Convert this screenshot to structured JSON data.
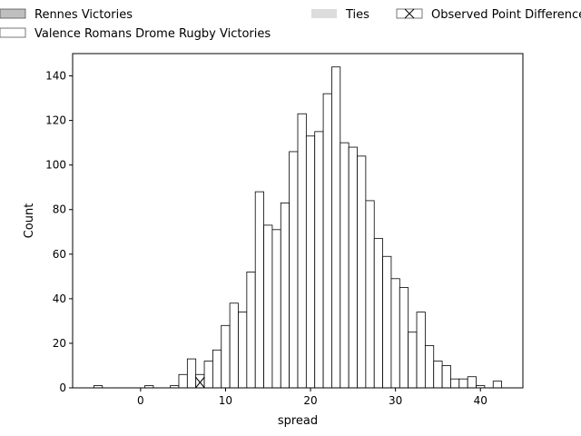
{
  "chart_data": {
    "type": "bar",
    "subtype": "histogram",
    "xlabel": "spread",
    "ylabel": "Count",
    "xlim": [
      -8,
      45
    ],
    "ylim": [
      0,
      150
    ],
    "xticks": [
      0,
      10,
      20,
      30,
      40
    ],
    "yticks": [
      0,
      20,
      40,
      60,
      80,
      100,
      120,
      140
    ],
    "bin_width": 1,
    "grid": false,
    "legend_position": "top",
    "legend": [
      {
        "label": "Rennes Victories",
        "color": "#bfbfbf",
        "style": "fill"
      },
      {
        "label": "Valence Romans Drome Rugby Victories",
        "color": "#ffffff",
        "style": "outline"
      },
      {
        "label": "Ties",
        "color": "#dcdcdc",
        "style": "fill-no-border"
      },
      {
        "label": "Observed Point Difference",
        "color": "#ffffff",
        "style": "x-marker"
      }
    ],
    "observed_point_difference": 7,
    "series": [
      {
        "name": "Valence Romans Drome Rugby Victories",
        "color": "#ffffff",
        "bins": [
          {
            "x": -5,
            "count": 1
          },
          {
            "x": 1,
            "count": 1
          },
          {
            "x": 4,
            "count": 1
          },
          {
            "x": 5,
            "count": 6
          },
          {
            "x": 6,
            "count": 13
          },
          {
            "x": 7,
            "count": 6
          },
          {
            "x": 8,
            "count": 12
          },
          {
            "x": 9,
            "count": 17
          },
          {
            "x": 10,
            "count": 28
          },
          {
            "x": 11,
            "count": 38
          },
          {
            "x": 12,
            "count": 34
          },
          {
            "x": 13,
            "count": 52
          },
          {
            "x": 14,
            "count": 88
          },
          {
            "x": 15,
            "count": 73
          },
          {
            "x": 16,
            "count": 71
          },
          {
            "x": 17,
            "count": 83
          },
          {
            "x": 18,
            "count": 106
          },
          {
            "x": 19,
            "count": 123
          },
          {
            "x": 20,
            "count": 113
          },
          {
            "x": 21,
            "count": 115
          },
          {
            "x": 22,
            "count": 132
          },
          {
            "x": 23,
            "count": 144
          },
          {
            "x": 24,
            "count": 110
          },
          {
            "x": 25,
            "count": 108
          },
          {
            "x": 26,
            "count": 104
          },
          {
            "x": 27,
            "count": 84
          },
          {
            "x": 28,
            "count": 67
          },
          {
            "x": 29,
            "count": 59
          },
          {
            "x": 30,
            "count": 49
          },
          {
            "x": 31,
            "count": 45
          },
          {
            "x": 32,
            "count": 25
          },
          {
            "x": 33,
            "count": 34
          },
          {
            "x": 34,
            "count": 19
          },
          {
            "x": 35,
            "count": 12
          },
          {
            "x": 36,
            "count": 10
          },
          {
            "x": 37,
            "count": 4
          },
          {
            "x": 38,
            "count": 4
          },
          {
            "x": 39,
            "count": 5
          },
          {
            "x": 40,
            "count": 1
          },
          {
            "x": 42,
            "count": 3
          }
        ]
      }
    ]
  }
}
